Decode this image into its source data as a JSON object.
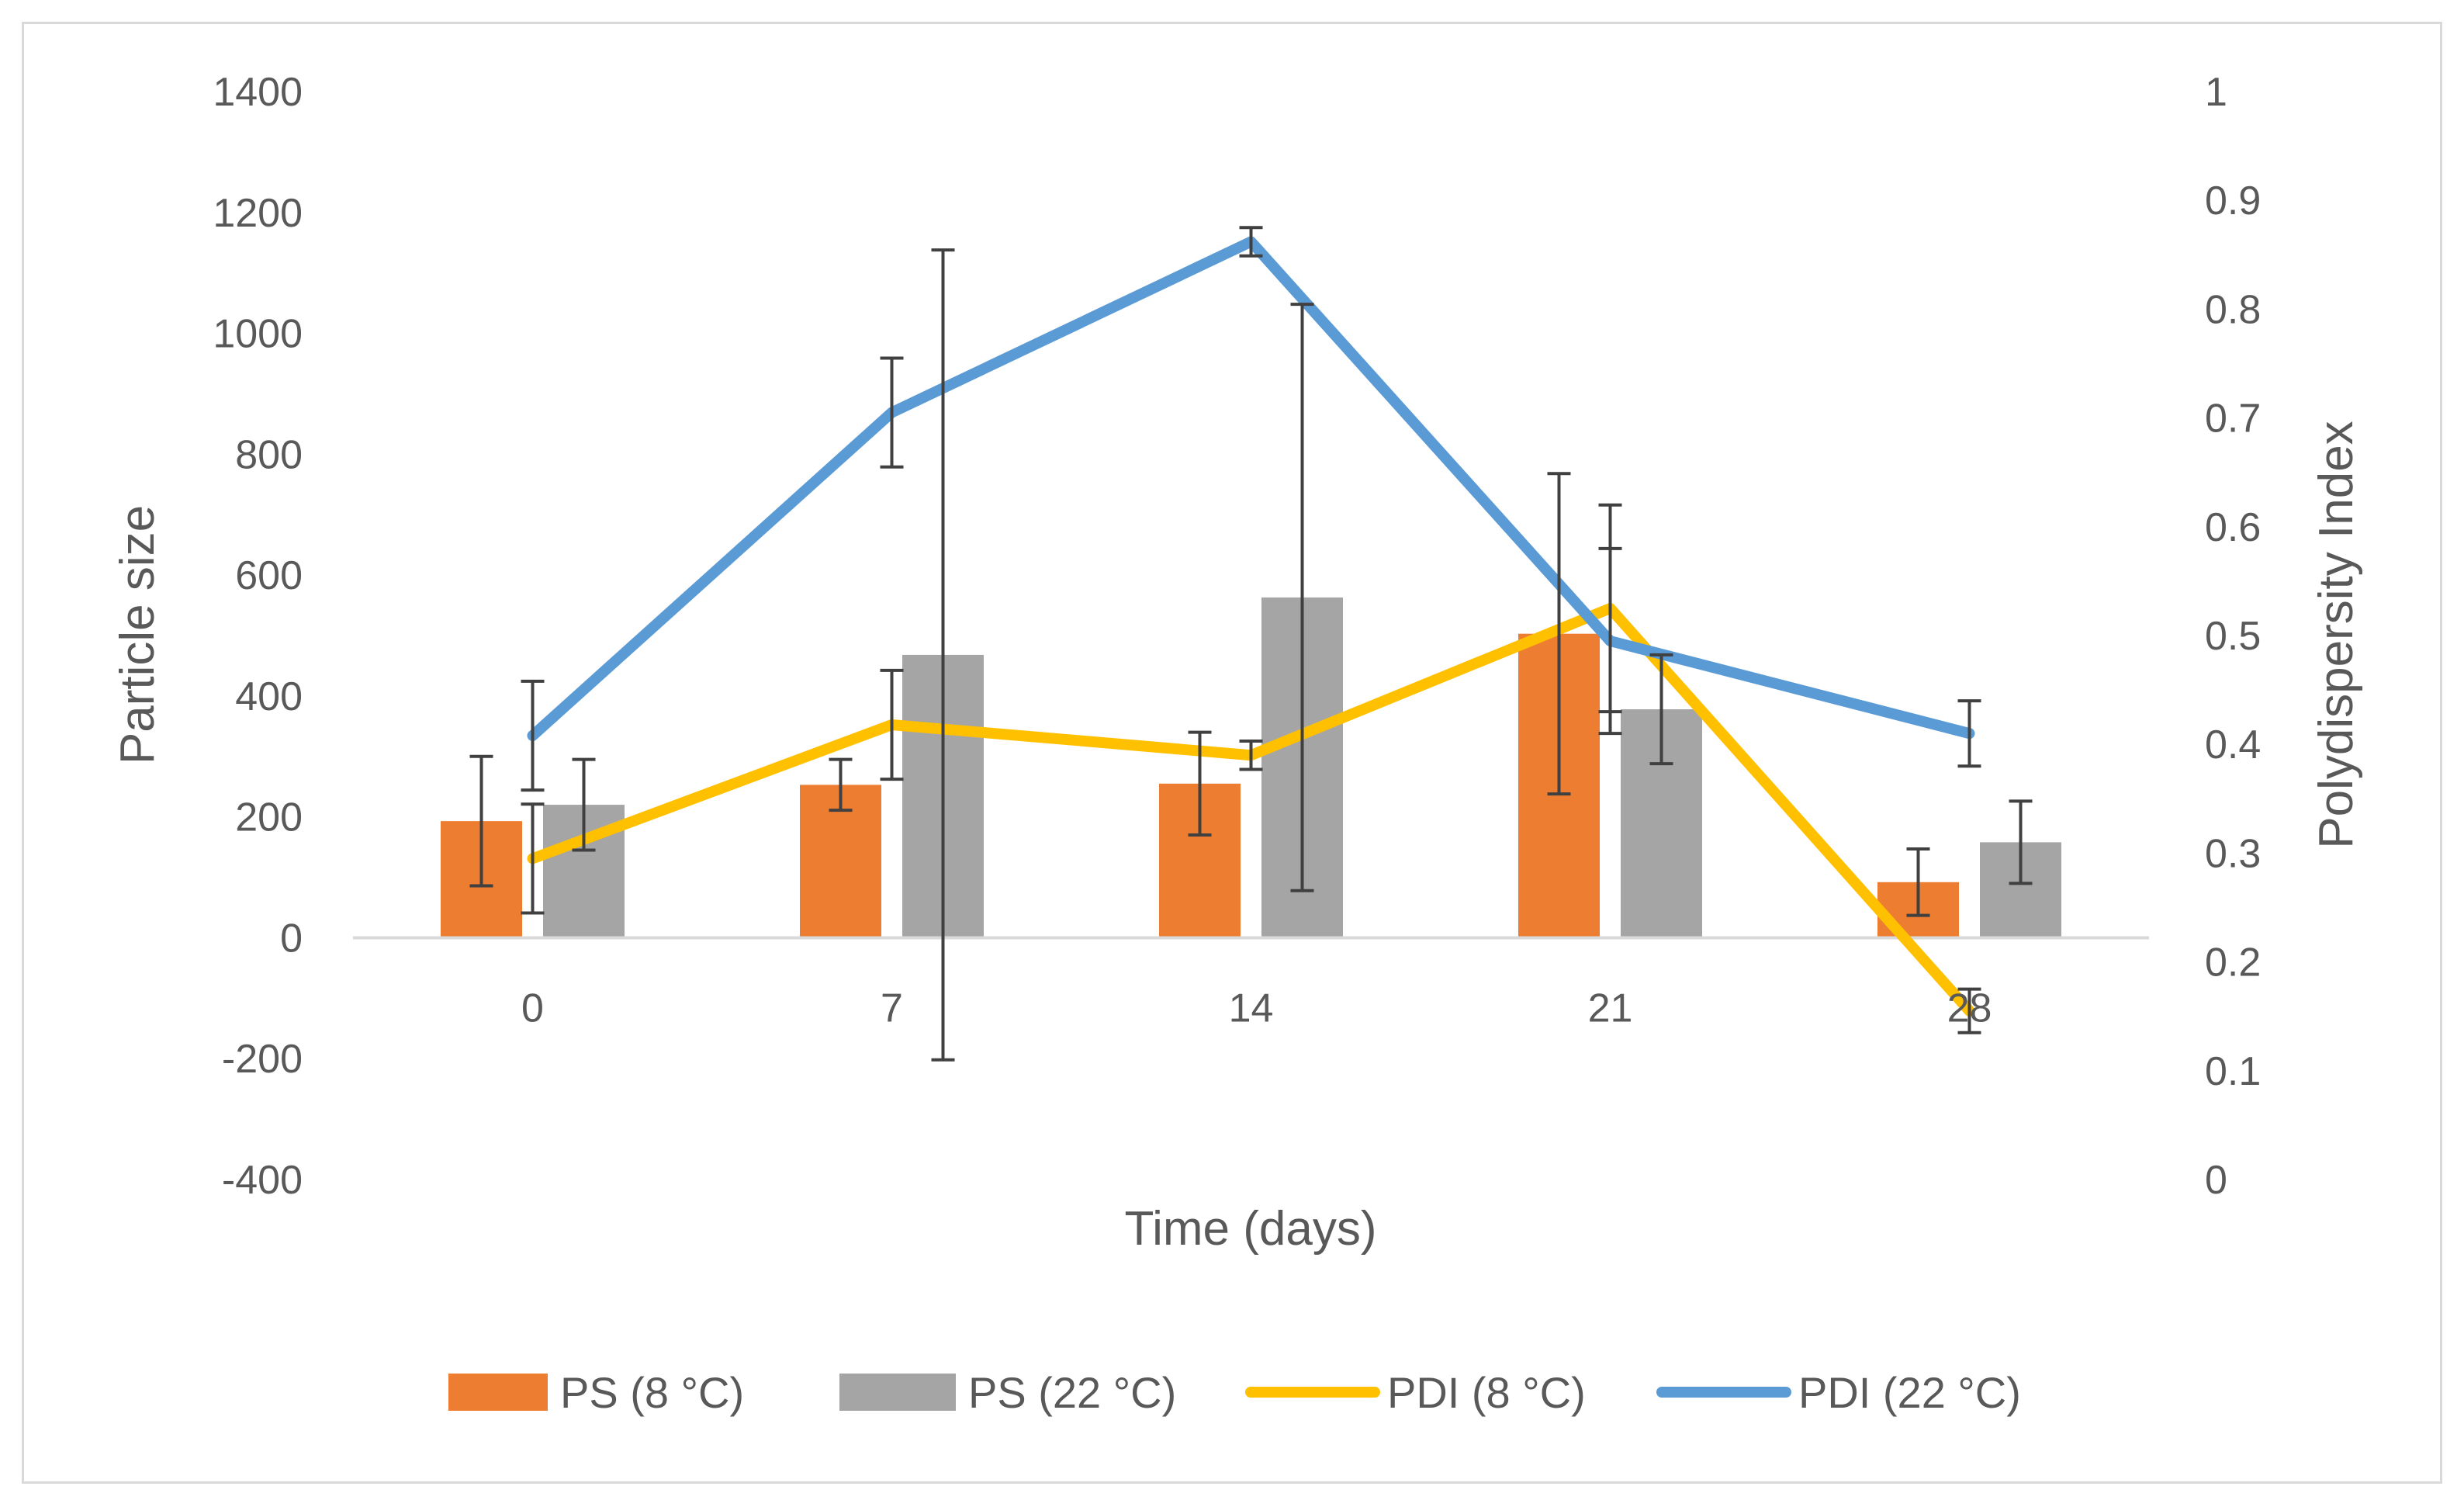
{
  "chart_data": {
    "type": "bar+line",
    "title": "",
    "xlabel": "Time (days)",
    "ylabel_left": "Particle size",
    "ylabel_right": "Polydispersity Index",
    "categories": [
      "0",
      "7",
      "14",
      "21",
      "28"
    ],
    "ylim_left": [
      -400,
      1400
    ],
    "yticks_left": [
      "-400",
      "-200",
      "0",
      "200",
      "400",
      "600",
      "800",
      "1000",
      "1200",
      "1400"
    ],
    "ylim_right": [
      0,
      1
    ],
    "yticks_right": [
      "0",
      "0.1",
      "0.2",
      "0.3",
      "0.4",
      "0.5",
      "0.6",
      "0.7",
      "0.8",
      "0.9",
      "1"
    ],
    "grid": false,
    "legend_position": "bottom",
    "bar_series": [
      {
        "name": "PS (8 °C)",
        "color": "#ED7D31",
        "values": [
          193,
          253,
          255,
          503,
          92
        ],
        "errors": [
          107,
          42,
          85,
          265,
          55
        ]
      },
      {
        "name": "PS (22 °C)",
        "color": "#A5A5A5",
        "values": [
          220,
          468,
          563,
          378,
          158
        ],
        "errors": [
          75,
          670,
          485,
          90,
          68
        ]
      }
    ],
    "line_series": [
      {
        "name": "PDI (8 °C)",
        "color": "#FFC000",
        "values": [
          0.295,
          0.418,
          0.39,
          0.525,
          0.155
        ],
        "errors": [
          0.05,
          0.05,
          0.013,
          0.095,
          0.02
        ]
      },
      {
        "name": "PDI (22 °C)",
        "color": "#5B9BD5",
        "values": [
          0.408,
          0.705,
          0.862,
          0.495,
          0.41
        ],
        "errors": [
          0.05,
          0.05,
          0.013,
          0.085,
          0.03
        ]
      }
    ]
  }
}
